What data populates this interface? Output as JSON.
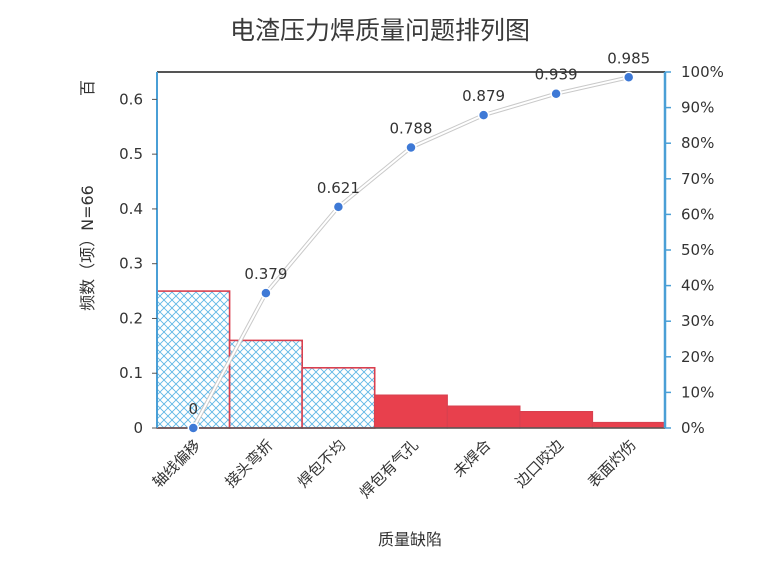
{
  "chart_data": {
    "type": "bar",
    "title": "电渣压力焊质量问题排列图",
    "xlabel": "质量缺陷",
    "ylabel_left": "频数（项）N=66",
    "ylabel_right": "百",
    "categories": [
      "轴线偏移",
      "接头弯折",
      "焊包不均",
      "焊包有气孔",
      "未焊合",
      "边口咬边",
      "表面灼伤"
    ],
    "values": [
      0.25,
      0.16,
      0.11,
      0.06,
      0.04,
      0.03,
      0.01
    ],
    "bar_styles": [
      "hatch",
      "hatch",
      "hatch",
      "solid",
      "solid",
      "solid",
      "solid"
    ],
    "ylim": [
      0,
      0.65
    ],
    "yticks": [
      0,
      0.1,
      0.2,
      0.3,
      0.4,
      0.5,
      0.6
    ],
    "ytick_labels": [
      "0",
      "0.1",
      "0.2",
      "0.3",
      "0.4",
      "0.5",
      "0.6"
    ],
    "y2lim": [
      0,
      1.0
    ],
    "y2ticks": [
      0,
      0.1,
      0.2,
      0.3,
      0.4,
      0.5,
      0.6,
      0.7,
      0.8,
      0.9,
      1.0
    ],
    "y2tick_labels": [
      "0%",
      "10%",
      "20%",
      "30%",
      "40%",
      "50%",
      "60%",
      "70%",
      "80%",
      "90%",
      "100%"
    ],
    "cumulative": [
      0,
      0.379,
      0.621,
      0.788,
      0.879,
      0.939,
      0.985
    ],
    "cumulative_labels": [
      "0",
      "0.379",
      "0.621",
      "0.788",
      "0.879",
      "0.939",
      "0.985"
    ],
    "colors": {
      "bar_edge": "#d9404f",
      "bar_fill": "#e8404d",
      "hatch": "#5fb8e6",
      "line_point": "#3e79d6",
      "right_axis": "#4a9fd6",
      "frame": "#555555"
    }
  }
}
